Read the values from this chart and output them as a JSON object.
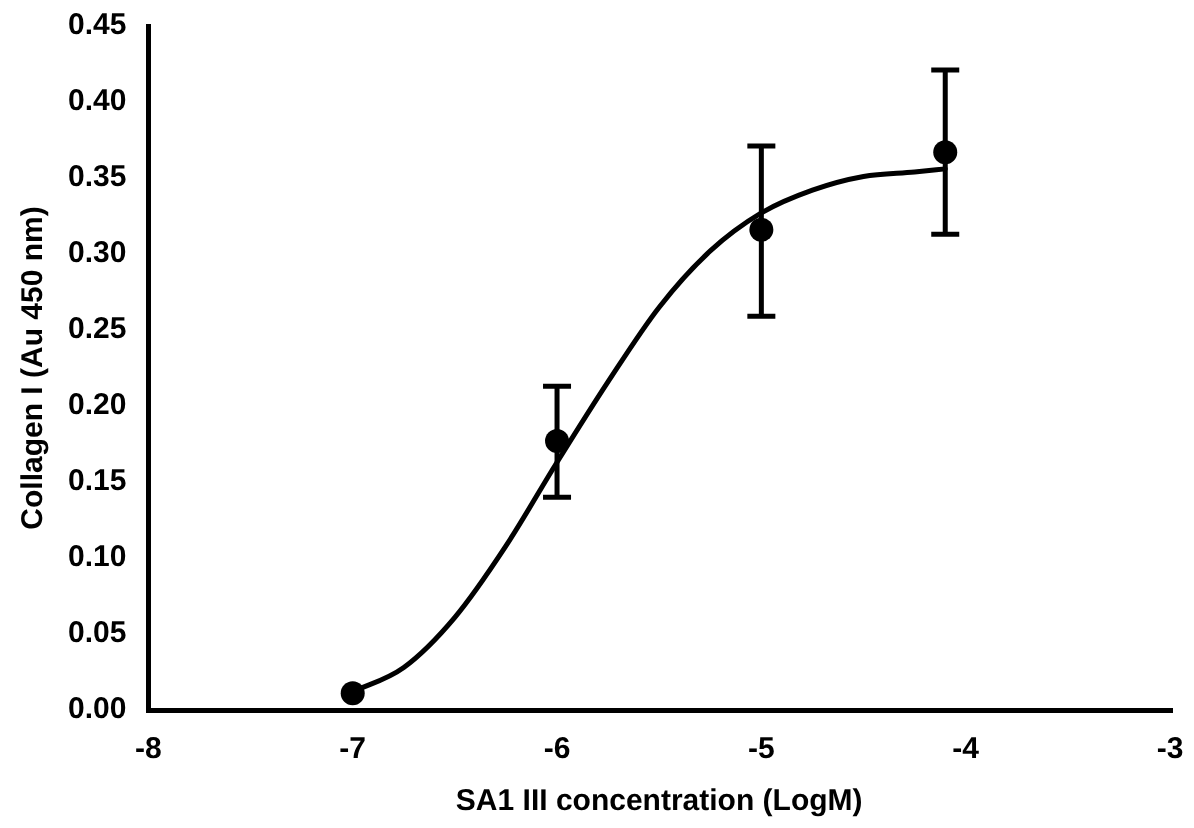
{
  "chart_data": {
    "type": "scatter",
    "xlabel": "SA1 III concentration (LogM)",
    "ylabel": "Collagen I (Au 450 nm)",
    "xlim": [
      -8,
      -3
    ],
    "xticks": [
      -8,
      -7,
      -6,
      -5,
      -4,
      -3
    ],
    "ylim": [
      0,
      0.45
    ],
    "yticks": [
      {
        "value": 0,
        "label": "0.00"
      },
      0.05,
      {
        "value": 0.1,
        "label": "0.10"
      },
      0.15,
      {
        "value": 0.2,
        "label": "0.20"
      },
      0.25,
      {
        "value": 0.3,
        "label": "0.30"
      },
      0.35,
      {
        "value": 0.4,
        "label": "0.40"
      },
      0.45
    ],
    "grid": false,
    "marker": "circle",
    "series": [
      {
        "color": "#000000",
        "x": [
          -7,
          -6,
          -5,
          -4.1
        ],
        "values": [
          0.011,
          0.177,
          0.316,
          0.367
        ],
        "errors": [
          null,
          [
            0.14,
            0.213
          ],
          [
            0.259,
            0.371
          ],
          [
            0.313,
            0.421
          ]
        ]
      },
      {
        "type": "line",
        "color": "#000000",
        "marker": "none",
        "x": [
          -7,
          -6.75,
          -6.5,
          -6.25,
          -6,
          -5.75,
          -5.5,
          -5.25,
          -5,
          -4.75,
          -4.5,
          -4.25,
          -4.1
        ],
        "values": [
          0.012,
          0.028,
          0.061,
          0.108,
          0.163,
          0.216,
          0.265,
          0.302,
          0.327,
          0.342,
          0.351,
          0.354,
          0.356
        ]
      }
    ]
  }
}
